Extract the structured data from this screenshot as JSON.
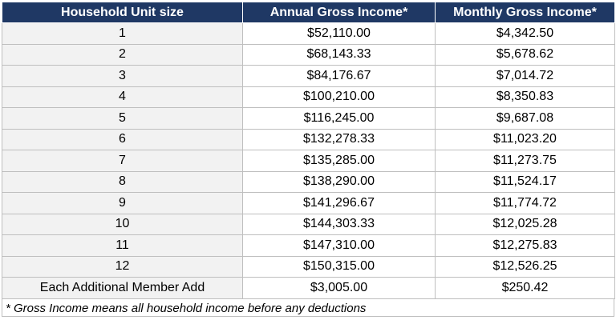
{
  "table": {
    "headers": [
      "Household Unit size",
      "Annual Gross Income*",
      "Monthly Gross Income*"
    ],
    "rows": [
      {
        "size": "1",
        "annual": "$52,110.00",
        "monthly": "$4,342.50"
      },
      {
        "size": "2",
        "annual": "$68,143.33",
        "monthly": "$5,678.62"
      },
      {
        "size": "3",
        "annual": "$84,176.67",
        "monthly": "$7,014.72"
      },
      {
        "size": "4",
        "annual": "$100,210.00",
        "monthly": "$8,350.83"
      },
      {
        "size": "5",
        "annual": "$116,245.00",
        "monthly": "$9,687.08"
      },
      {
        "size": "6",
        "annual": "$132,278.33",
        "monthly": "$11,023.20"
      },
      {
        "size": "7",
        "annual": "$135,285.00",
        "monthly": "$11,273.75"
      },
      {
        "size": "8",
        "annual": "$138,290.00",
        "monthly": "$11,524.17"
      },
      {
        "size": "9",
        "annual": "$141,296.67",
        "monthly": "$11,774.72"
      },
      {
        "size": "10",
        "annual": "$144,303.33",
        "monthly": "$12,025.28"
      },
      {
        "size": "11",
        "annual": "$147,310.00",
        "monthly": "$12,275.83"
      },
      {
        "size": "12",
        "annual": "$150,315.00",
        "monthly": "$12,526.25"
      },
      {
        "size": "Each Additional Member Add",
        "annual": "$3,005.00",
        "monthly": "$250.42"
      }
    ]
  },
  "footnote": "* Gross Income means all household income before any deductions",
  "colors": {
    "header_bg": "#1f3864",
    "header_text": "#ffffff",
    "size_col_bg": "#f2f2f2",
    "border": "#bfbfbf"
  }
}
